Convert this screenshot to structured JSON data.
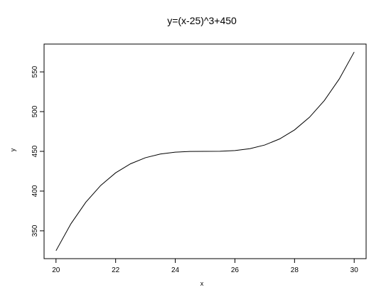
{
  "chart_data": {
    "type": "line",
    "title": "y=(x-25)^3+450",
    "xlabel": "x",
    "ylabel": "y",
    "xlim": [
      19.6,
      30.4
    ],
    "ylim": [
      315,
      585
    ],
    "x_ticks": [
      20,
      22,
      24,
      26,
      28,
      30
    ],
    "x_tick_labels": [
      "20",
      "22",
      "24",
      "26",
      "28",
      "30"
    ],
    "y_ticks": [
      350,
      400,
      450,
      500,
      550
    ],
    "y_tick_labels": [
      "350",
      "400",
      "450",
      "500",
      "550"
    ],
    "grid": false,
    "series": [
      {
        "x": [
          20,
          20.5,
          21,
          21.5,
          22,
          22.5,
          23,
          23.5,
          24,
          24.5,
          25,
          25.5,
          26,
          26.5,
          27,
          27.5,
          28,
          28.5,
          29,
          29.5,
          30
        ],
        "y": [
          325,
          358.875,
          386,
          407.125,
          423,
          434.375,
          442,
          446.625,
          449,
          449.875,
          450,
          450.125,
          451,
          453.375,
          458,
          465.625,
          477,
          492.875,
          514,
          541.125,
          575
        ]
      }
    ]
  }
}
